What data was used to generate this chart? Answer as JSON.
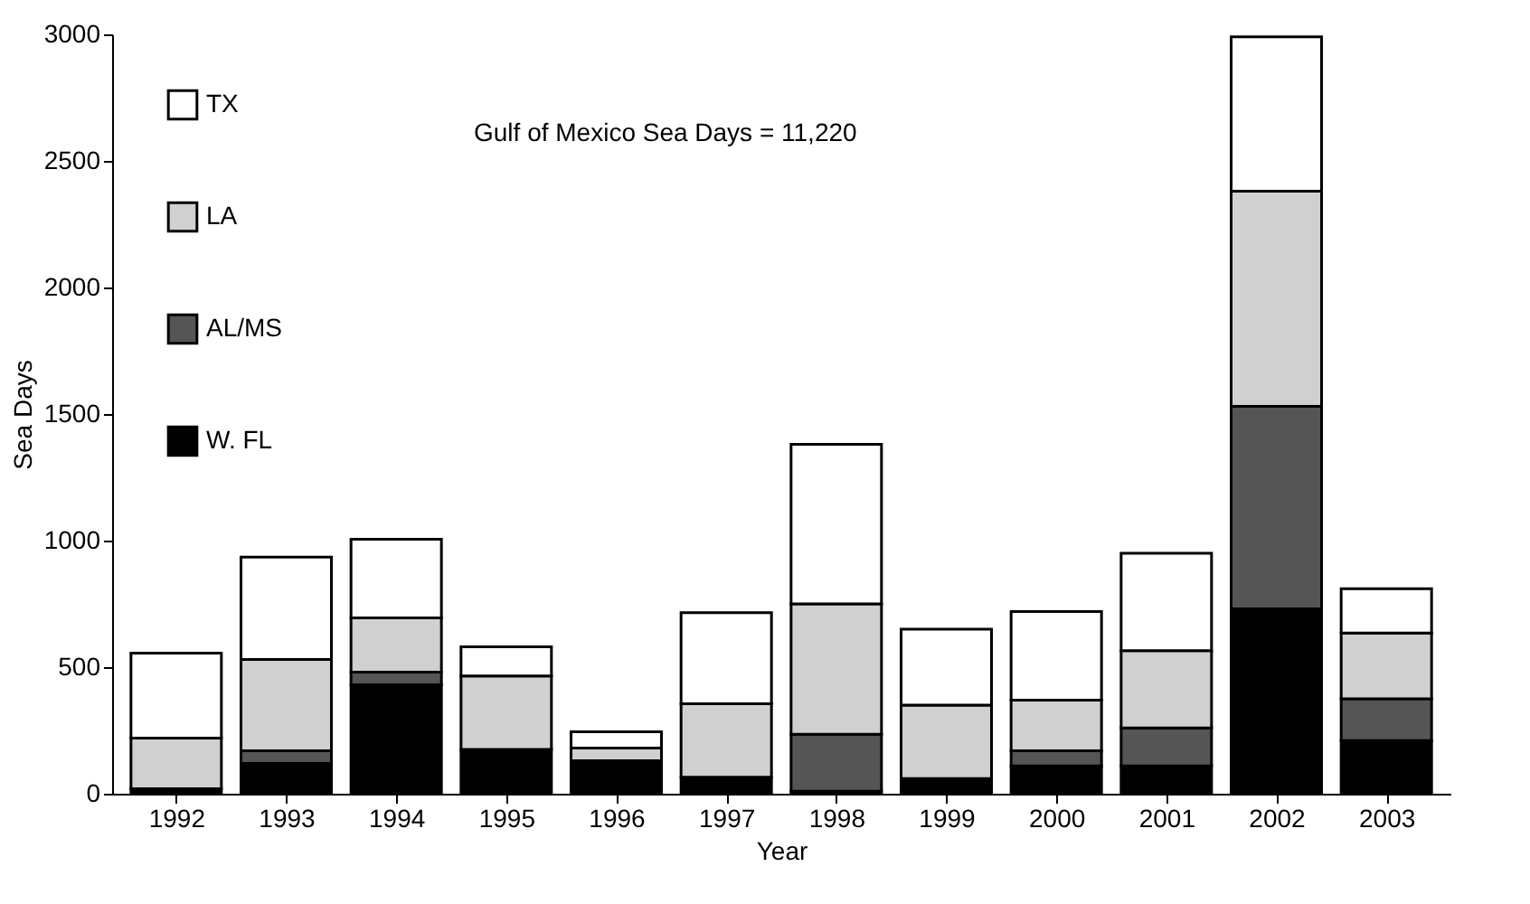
{
  "chart_data": {
    "type": "bar",
    "stacked": true,
    "xlabel": "Year",
    "ylabel": "Sea Days",
    "categories": [
      "1992",
      "1993",
      "1994",
      "1995",
      "1996",
      "1997",
      "1998",
      "1999",
      "2000",
      "2001",
      "2002",
      "2003"
    ],
    "series": [
      {
        "name": "W. FL",
        "color": "#000000",
        "values": [
          20,
          120,
          430,
          175,
          130,
          65,
          10,
          60,
          110,
          110,
          730,
          210
        ]
      },
      {
        "name": "AL/MS",
        "color": "#555555",
        "values": [
          0,
          50,
          50,
          0,
          0,
          0,
          225,
          0,
          60,
          150,
          800,
          165
        ]
      },
      {
        "name": "LA",
        "color": "#d0d0d0",
        "values": [
          200,
          360,
          215,
          290,
          50,
          290,
          515,
          290,
          200,
          305,
          850,
          260
        ]
      },
      {
        "name": "TX",
        "color": "#ffffff",
        "values": [
          335,
          405,
          310,
          115,
          65,
          360,
          630,
          300,
          350,
          385,
          610,
          175
        ]
      }
    ],
    "ylim": [
      0,
      3000
    ],
    "yticks": [
      0,
      500,
      1000,
      1500,
      2000,
      2500,
      3000
    ],
    "grid": false,
    "legend": "top left",
    "annotations": [
      "Gulf of Mexico Sea Days = 11,220"
    ]
  }
}
